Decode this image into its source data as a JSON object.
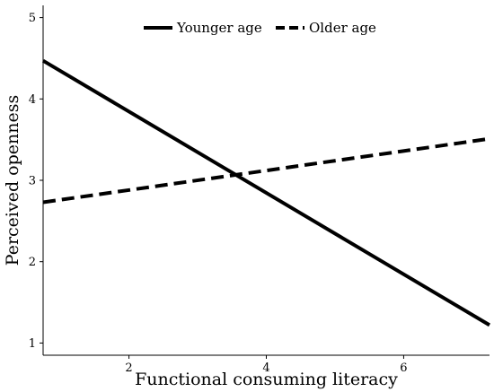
{
  "chart_data": {
    "type": "line",
    "title": "",
    "xlabel": "Functional consuming literacy",
    "ylabel": "Perceived openness",
    "xlim": [
      0.75,
      7.25
    ],
    "ylim": [
      0.85,
      5.15
    ],
    "x_ticks": [
      2,
      4,
      6
    ],
    "y_ticks": [
      1,
      2,
      3,
      4,
      5
    ],
    "grid": false,
    "legend_position": "top",
    "series": [
      {
        "name": "Younger age",
        "line_style": "solid",
        "color": "#000000",
        "points": [
          {
            "x": 0.75,
            "y": 4.47
          },
          {
            "x": 7.25,
            "y": 1.22
          }
        ]
      },
      {
        "name": "Older age",
        "line_style": "dashed",
        "color": "#000000",
        "points": [
          {
            "x": 0.75,
            "y": 2.73
          },
          {
            "x": 7.25,
            "y": 3.51
          }
        ]
      }
    ]
  }
}
